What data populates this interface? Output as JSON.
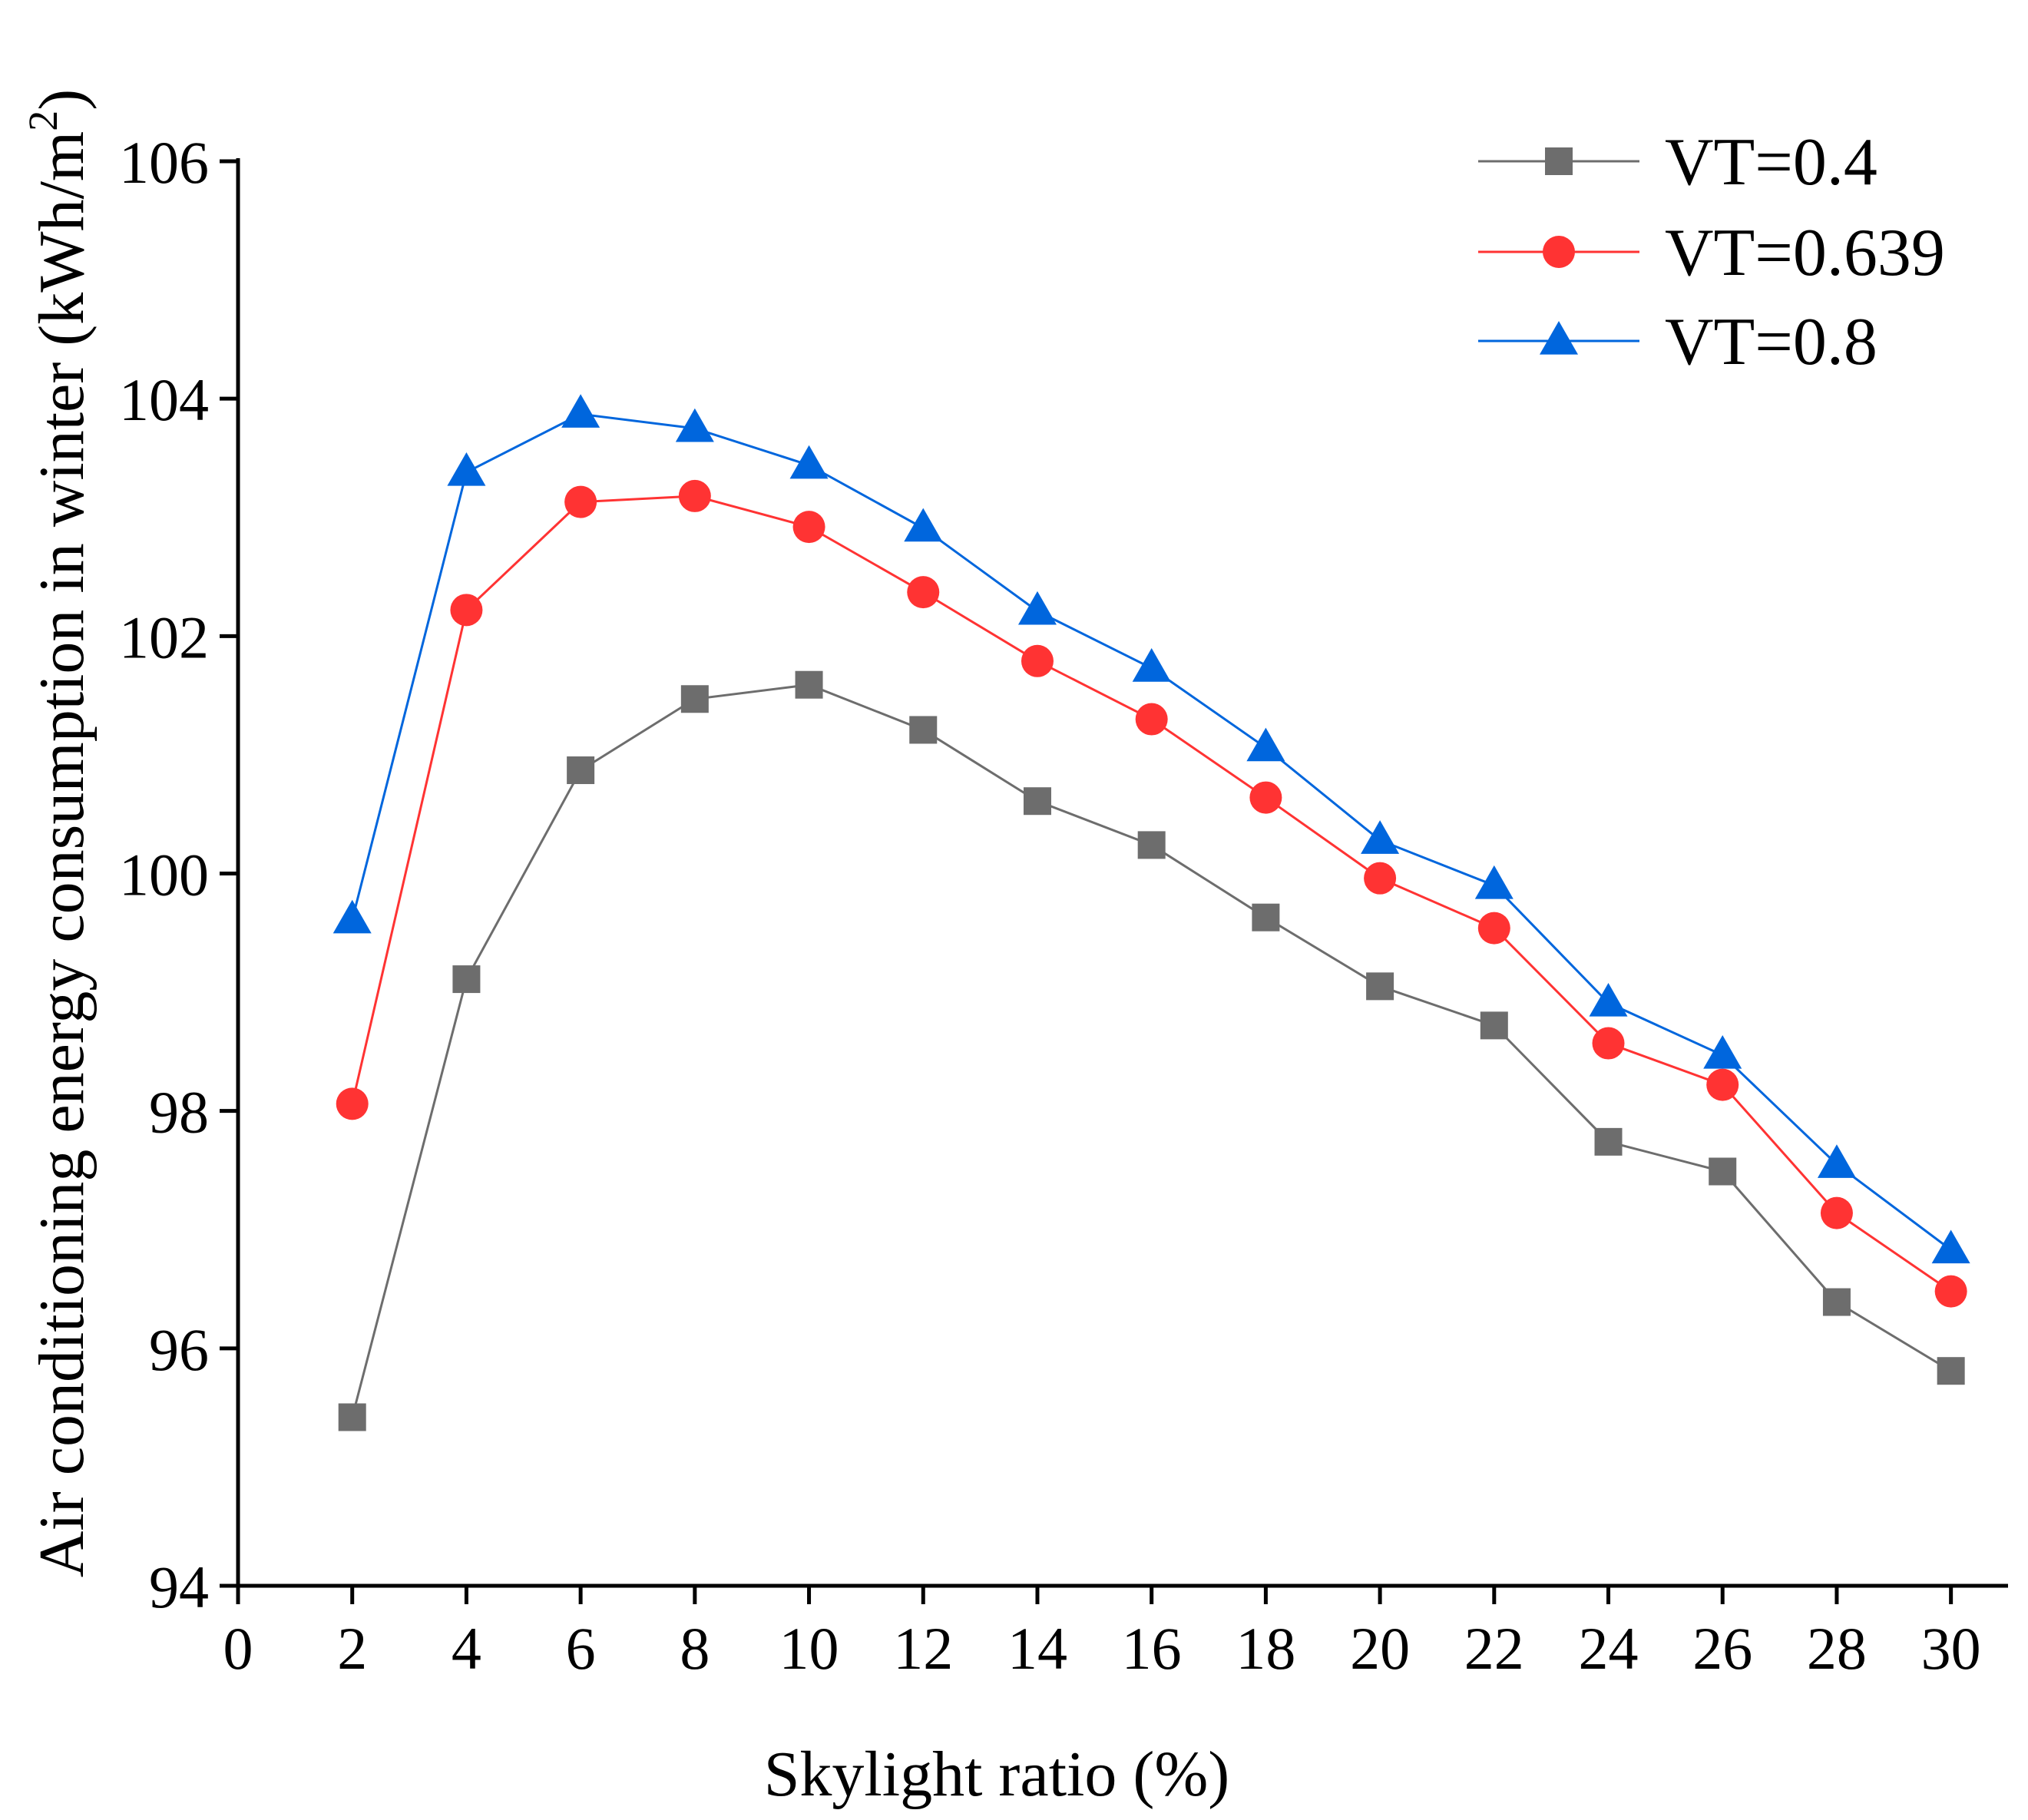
{
  "chart_data": {
    "type": "line",
    "title": "",
    "xlabel": "Skylight ratio (%)",
    "ylabel_main": "Air conditioning energy consumption in winter (kWh/m",
    "ylabel_sup": "2",
    "ylabel_close": ")",
    "xlim": [
      0,
      31
    ],
    "ylim": [
      94,
      106
    ],
    "x_ticks": [
      0,
      2,
      4,
      6,
      8,
      10,
      12,
      14,
      16,
      18,
      20,
      22,
      24,
      26,
      28,
      30
    ],
    "y_ticks": [
      94,
      96,
      98,
      100,
      102,
      104,
      106
    ],
    "grid": false,
    "legend_position": "top-right",
    "x": [
      2,
      4,
      6,
      8,
      10,
      12,
      14,
      16,
      18,
      20,
      22,
      24,
      26,
      28,
      30
    ],
    "series": [
      {
        "name": "VT=0.4",
        "color": "#6d6d6d",
        "marker": "square",
        "values": [
          95.42,
          99.11,
          100.87,
          101.47,
          101.59,
          101.21,
          100.61,
          100.24,
          99.63,
          99.05,
          98.72,
          97.74,
          97.49,
          96.39,
          95.81
        ]
      },
      {
        "name": "VT=0.639",
        "color": "#ff3333",
        "marker": "circle",
        "values": [
          98.06,
          102.22,
          103.13,
          103.18,
          102.92,
          102.37,
          101.79,
          101.3,
          100.64,
          99.96,
          99.54,
          98.57,
          98.22,
          97.14,
          96.48
        ]
      },
      {
        "name": "VT=0.8",
        "color": "#0066dd",
        "marker": "triangle",
        "values": [
          99.61,
          103.38,
          103.87,
          103.75,
          103.44,
          102.91,
          102.21,
          101.73,
          101.06,
          100.28,
          99.9,
          98.91,
          98.47,
          97.55,
          96.83
        ]
      }
    ]
  }
}
